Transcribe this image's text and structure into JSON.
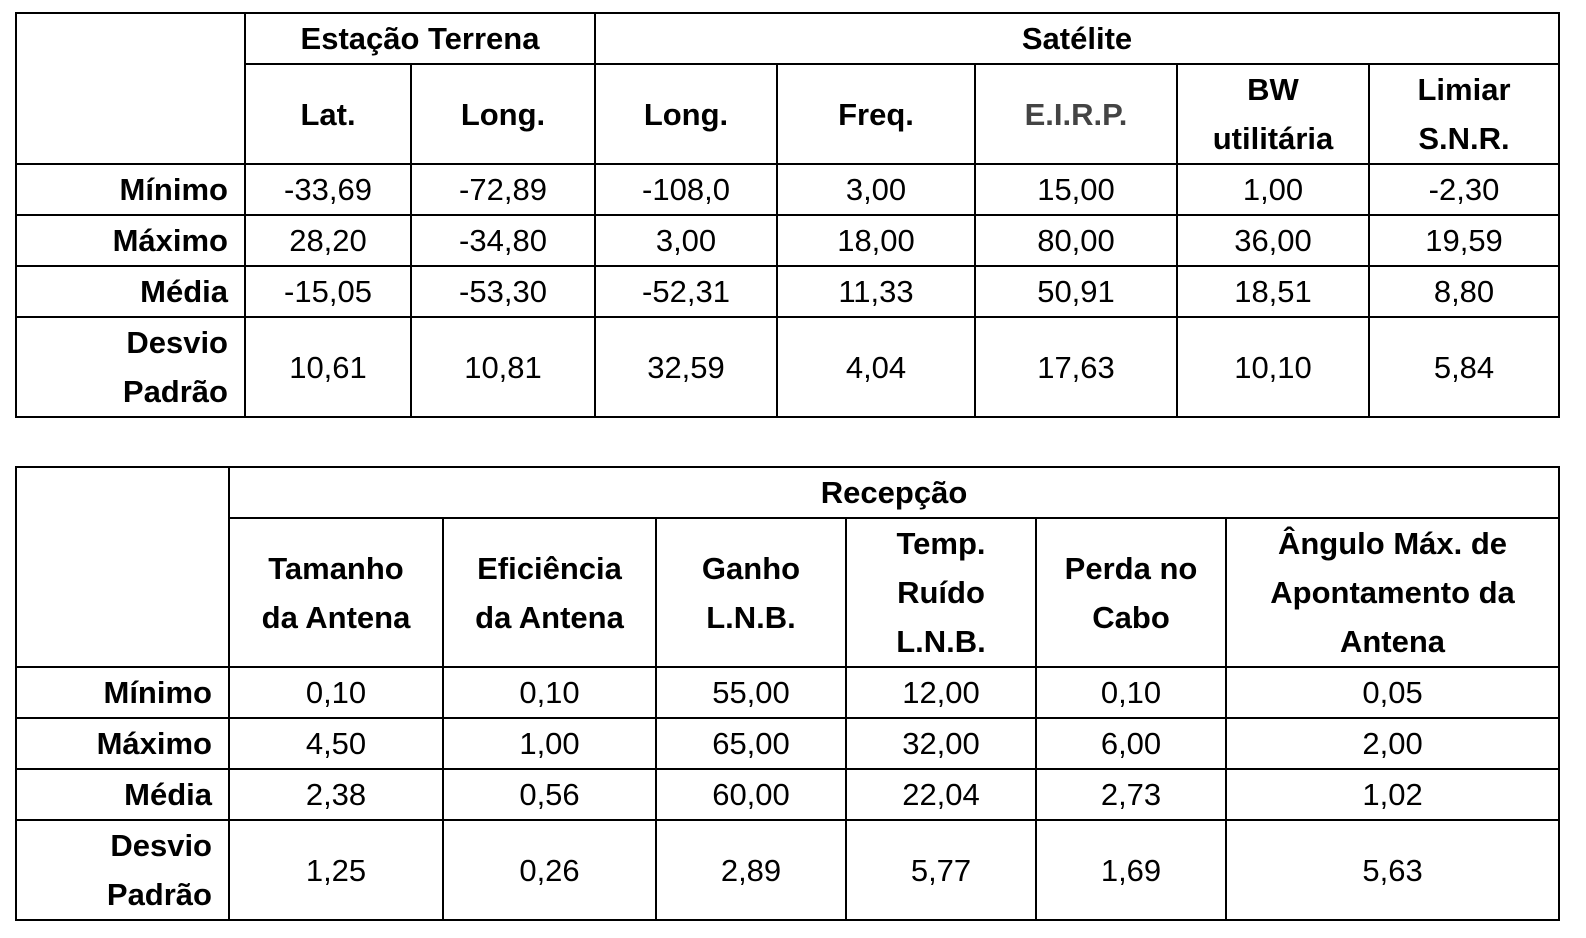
{
  "table1": {
    "groups": [
      "Estação Terrena",
      "Satélite"
    ],
    "columns": [
      "Lat.",
      "Long.",
      "Long.",
      "Freq.",
      "E.I.R.P.",
      "BW utilitária",
      "Limiar S.N.R."
    ],
    "col_lines": [
      [
        "Lat."
      ],
      [
        "Long."
      ],
      [
        "Long."
      ],
      [
        "Freq."
      ],
      [
        "E.I.R.P."
      ],
      [
        "BW",
        "utilitária"
      ],
      [
        "Limiar",
        "S.N.R."
      ]
    ],
    "rows": [
      {
        "label": "Mínimo",
        "label_lines": [
          "Mínimo"
        ],
        "values": [
          "-33,69",
          "-72,89",
          "-108,0",
          "3,00",
          "15,00",
          "1,00",
          "-2,30"
        ]
      },
      {
        "label": "Máximo",
        "label_lines": [
          "Máximo"
        ],
        "values": [
          "28,20",
          "-34,80",
          "3,00",
          "18,00",
          "80,00",
          "36,00",
          "19,59"
        ]
      },
      {
        "label": "Média",
        "label_lines": [
          "Média"
        ],
        "values": [
          "-15,05",
          "-53,30",
          "-52,31",
          "11,33",
          "50,91",
          "18,51",
          "8,80"
        ]
      },
      {
        "label": "Desvio Padrão",
        "label_lines": [
          "Desvio",
          "Padrão"
        ],
        "values": [
          "10,61",
          "10,81",
          "32,59",
          "4,04",
          "17,63",
          "10,10",
          "5,84"
        ]
      }
    ]
  },
  "table2": {
    "group": "Recepção",
    "columns": [
      "Tamanho da Antena",
      "Eficiência da Antena",
      "Ganho L.N.B.",
      "Temp. Ruído L.N.B.",
      "Perda no Cabo",
      "Ângulo Máx. de Apontamento da Antena"
    ],
    "col_lines": [
      [
        "Tamanho",
        "da Antena"
      ],
      [
        "Eficiência",
        "da Antena"
      ],
      [
        "Ganho",
        "L.N.B."
      ],
      [
        "Temp.",
        "Ruído",
        "L.N.B."
      ],
      [
        "Perda no",
        "Cabo"
      ],
      [
        "Ângulo Máx. de",
        "Apontamento da",
        "Antena"
      ]
    ],
    "rows": [
      {
        "label": "Mínimo",
        "label_lines": [
          "Mínimo"
        ],
        "values": [
          "0,10",
          "0,10",
          "55,00",
          "12,00",
          "0,10",
          "0,05"
        ]
      },
      {
        "label": "Máximo",
        "label_lines": [
          "Máximo"
        ],
        "values": [
          "4,50",
          "1,00",
          "65,00",
          "32,00",
          "6,00",
          "2,00"
        ]
      },
      {
        "label": "Média",
        "label_lines": [
          "Média"
        ],
        "values": [
          "2,38",
          "0,56",
          "60,00",
          "22,04",
          "2,73",
          "1,02"
        ]
      },
      {
        "label": "Desvio Padrão",
        "label_lines": [
          "Desvio",
          "Padrão"
        ],
        "values": [
          "1,25",
          "0,26",
          "2,89",
          "5,77",
          "1,69",
          "5,63"
        ]
      }
    ]
  }
}
